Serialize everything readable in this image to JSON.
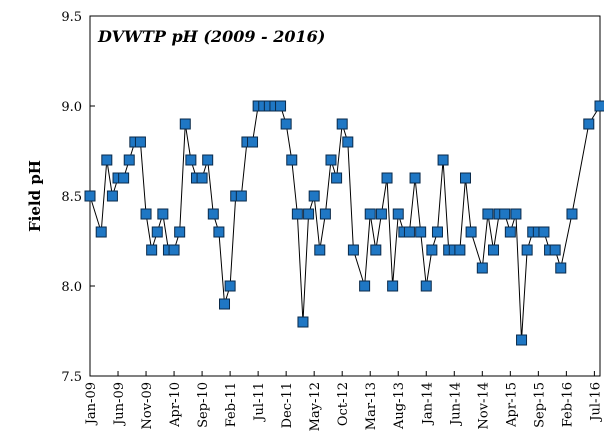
{
  "chart_data": {
    "type": "line",
    "title": "DVWTP pH (2009 - 2016)",
    "y_label": "Field pH",
    "color": "#1f77c4",
    "line_color": "#000000",
    "x": [
      "2009-01",
      "2009-03",
      "2009-04",
      "2009-05",
      "2009-06",
      "2009-07",
      "2009-08",
      "2009-09",
      "2009-10",
      "2009-11",
      "2009-12",
      "2010-01",
      "2010-02",
      "2010-03",
      "2010-04",
      "2010-05",
      "2010-06",
      "2010-07",
      "2010-08",
      "2010-09",
      "2010-10",
      "2010-11",
      "2010-12",
      "2011-01",
      "2011-02",
      "2011-03",
      "2011-04",
      "2011-05",
      "2011-06",
      "2011-07",
      "2011-08",
      "2011-09",
      "2011-10",
      "2011-11",
      "2011-12",
      "2012-01",
      "2012-02",
      "2012-03",
      "2012-04",
      "2012-05",
      "2012-06",
      "2012-07",
      "2012-08",
      "2012-09",
      "2012-10",
      "2012-11",
      "2012-12",
      "2013-02",
      "2013-03",
      "2013-04",
      "2013-05",
      "2013-06",
      "2013-07",
      "2013-08",
      "2013-09",
      "2013-10",
      "2013-11",
      "2013-12",
      "2014-01",
      "2014-02",
      "2014-03",
      "2014-04",
      "2014-05",
      "2014-06",
      "2014-07",
      "2014-08",
      "2014-09",
      "2014-11",
      "2014-12",
      "2015-01",
      "2015-02",
      "2015-03",
      "2015-04",
      "2015-05",
      "2015-06",
      "2015-07",
      "2015-08",
      "2015-09",
      "2015-10",
      "2015-11",
      "2015-12",
      "2016-01",
      "2016-03",
      "2016-06",
      "2016-08"
    ],
    "values": [
      8.5,
      8.3,
      8.7,
      8.5,
      8.6,
      8.6,
      8.7,
      8.8,
      8.8,
      8.4,
      8.2,
      8.3,
      8.4,
      8.2,
      8.2,
      8.3,
      8.9,
      8.7,
      8.6,
      8.6,
      8.7,
      8.4,
      8.3,
      7.9,
      8.0,
      8.5,
      8.5,
      8.8,
      8.8,
      9.0,
      9.0,
      9.0,
      9.0,
      9.0,
      8.9,
      8.7,
      8.4,
      7.8,
      8.4,
      8.5,
      8.2,
      8.4,
      8.7,
      8.6,
      8.9,
      8.8,
      8.2,
      8.0,
      8.4,
      8.2,
      8.4,
      8.6,
      8.0,
      8.4,
      8.3,
      8.3,
      8.6,
      8.3,
      8.0,
      8.2,
      8.3,
      8.7,
      8.2,
      8.2,
      8.2,
      8.6,
      8.3,
      8.1,
      8.4,
      8.2,
      8.4,
      8.4,
      8.3,
      8.4,
      7.7,
      8.2,
      8.3,
      8.3,
      8.3,
      8.2,
      8.2,
      8.1,
      8.4,
      8.9,
      9.0
    ],
    "xlim": [
      "2009-01",
      "2016-08"
    ],
    "xticks": [
      {
        "value": "2009-01",
        "label": "Jan-09"
      },
      {
        "value": "2009-06",
        "label": "Jun-09"
      },
      {
        "value": "2009-11",
        "label": "Nov-09"
      },
      {
        "value": "2010-04",
        "label": "Apr-10"
      },
      {
        "value": "2010-09",
        "label": "Sep-10"
      },
      {
        "value": "2011-02",
        "label": "Feb-11"
      },
      {
        "value": "2011-07",
        "label": "Jul-11"
      },
      {
        "value": "2011-12",
        "label": "Dec-11"
      },
      {
        "value": "2012-05",
        "label": "May-12"
      },
      {
        "value": "2012-10",
        "label": "Oct-12"
      },
      {
        "value": "2013-03",
        "label": "Mar-13"
      },
      {
        "value": "2013-08",
        "label": "Aug-13"
      },
      {
        "value": "2014-01",
        "label": "Jan-14"
      },
      {
        "value": "2014-06",
        "label": "Jun-14"
      },
      {
        "value": "2014-11",
        "label": "Nov-14"
      },
      {
        "value": "2015-04",
        "label": "Apr-15"
      },
      {
        "value": "2015-09",
        "label": "Sep-15"
      },
      {
        "value": "2016-02",
        "label": "Feb-16"
      },
      {
        "value": "2016-07",
        "label": "Jul-16"
      }
    ],
    "ylim": [
      7.5,
      9.5
    ],
    "yticks": [
      7.5,
      {
        "value": 8,
        "label": "8.0"
      },
      8.5,
      {
        "value": 9,
        "label": "9.0"
      },
      9.5
    ]
  }
}
